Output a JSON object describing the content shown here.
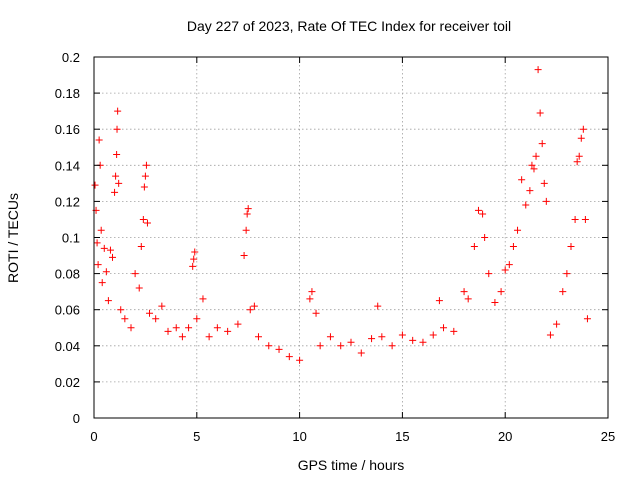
{
  "chart_data": {
    "type": "scatter",
    "title": "Day 227 of 2023, Rate Of TEC Index for receiver toil",
    "xlabel": "GPS time / hours",
    "ylabel": "ROTI / TECUs",
    "xlim": [
      0,
      25
    ],
    "ylim": [
      0,
      0.2
    ],
    "xticks": [
      "0",
      "5",
      "10",
      "15",
      "20",
      "25"
    ],
    "yticks": [
      "0",
      "0.02",
      "0.04",
      "0.06",
      "0.08",
      "0.1",
      "0.12",
      "0.14",
      "0.16",
      "0.18",
      "0.2"
    ],
    "grid": true,
    "marker": "+",
    "color": "#ff0000",
    "series": [
      {
        "points": [
          [
            0.05,
            0.129
          ],
          [
            0.1,
            0.115
          ],
          [
            0.15,
            0.097
          ],
          [
            0.2,
            0.085
          ],
          [
            0.25,
            0.154
          ],
          [
            0.3,
            0.14
          ],
          [
            0.35,
            0.104
          ],
          [
            0.4,
            0.075
          ],
          [
            0.5,
            0.094
          ],
          [
            0.6,
            0.081
          ],
          [
            0.7,
            0.065
          ],
          [
            0.8,
            0.093
          ],
          [
            0.9,
            0.089
          ],
          [
            1.0,
            0.125
          ],
          [
            1.05,
            0.134
          ],
          [
            1.1,
            0.146
          ],
          [
            1.12,
            0.16
          ],
          [
            1.15,
            0.17
          ],
          [
            1.2,
            0.13
          ],
          [
            1.3,
            0.06
          ],
          [
            1.5,
            0.055
          ],
          [
            1.8,
            0.05
          ],
          [
            2.0,
            0.08
          ],
          [
            2.2,
            0.072
          ],
          [
            2.3,
            0.095
          ],
          [
            2.4,
            0.11
          ],
          [
            2.45,
            0.128
          ],
          [
            2.5,
            0.134
          ],
          [
            2.55,
            0.14
          ],
          [
            2.6,
            0.108
          ],
          [
            2.7,
            0.058
          ],
          [
            3.0,
            0.055
          ],
          [
            3.3,
            0.062
          ],
          [
            3.6,
            0.048
          ],
          [
            4.0,
            0.05
          ],
          [
            4.3,
            0.045
          ],
          [
            4.6,
            0.05
          ],
          [
            4.8,
            0.084
          ],
          [
            4.85,
            0.088
          ],
          [
            4.9,
            0.092
          ],
          [
            5.0,
            0.055
          ],
          [
            5.3,
            0.066
          ],
          [
            5.6,
            0.045
          ],
          [
            6.0,
            0.05
          ],
          [
            6.5,
            0.048
          ],
          [
            7.0,
            0.052
          ],
          [
            7.3,
            0.09
          ],
          [
            7.4,
            0.104
          ],
          [
            7.45,
            0.113
          ],
          [
            7.5,
            0.116
          ],
          [
            7.6,
            0.06
          ],
          [
            7.8,
            0.062
          ],
          [
            8.0,
            0.045
          ],
          [
            8.5,
            0.04
          ],
          [
            9.0,
            0.038
          ],
          [
            9.5,
            0.034
          ],
          [
            10.0,
            0.032
          ],
          [
            10.5,
            0.066
          ],
          [
            10.6,
            0.07
          ],
          [
            10.8,
            0.058
          ],
          [
            11.0,
            0.04
          ],
          [
            11.5,
            0.045
          ],
          [
            12.0,
            0.04
          ],
          [
            12.5,
            0.042
          ],
          [
            13.0,
            0.036
          ],
          [
            13.5,
            0.044
          ],
          [
            13.8,
            0.062
          ],
          [
            14.0,
            0.045
          ],
          [
            14.5,
            0.04
          ],
          [
            15.0,
            0.046
          ],
          [
            15.5,
            0.043
          ],
          [
            16.0,
            0.042
          ],
          [
            16.5,
            0.046
          ],
          [
            16.8,
            0.065
          ],
          [
            17.0,
            0.05
          ],
          [
            17.5,
            0.048
          ],
          [
            18.0,
            0.07
          ],
          [
            18.2,
            0.066
          ],
          [
            18.5,
            0.095
          ],
          [
            18.7,
            0.115
          ],
          [
            18.9,
            0.113
          ],
          [
            19.0,
            0.1
          ],
          [
            19.2,
            0.08
          ],
          [
            19.5,
            0.064
          ],
          [
            19.8,
            0.07
          ],
          [
            20.0,
            0.082
          ],
          [
            20.2,
            0.085
          ],
          [
            20.4,
            0.095
          ],
          [
            20.6,
            0.104
          ],
          [
            20.8,
            0.132
          ],
          [
            21.0,
            0.118
          ],
          [
            21.2,
            0.126
          ],
          [
            21.3,
            0.14
          ],
          [
            21.4,
            0.138
          ],
          [
            21.5,
            0.145
          ],
          [
            21.6,
            0.193
          ],
          [
            21.7,
            0.169
          ],
          [
            21.8,
            0.152
          ],
          [
            21.9,
            0.13
          ],
          [
            22.0,
            0.12
          ],
          [
            22.2,
            0.046
          ],
          [
            22.5,
            0.052
          ],
          [
            22.8,
            0.07
          ],
          [
            23.0,
            0.08
          ],
          [
            23.2,
            0.095
          ],
          [
            23.4,
            0.11
          ],
          [
            23.5,
            0.142
          ],
          [
            23.6,
            0.145
          ],
          [
            23.7,
            0.155
          ],
          [
            23.8,
            0.16
          ],
          [
            23.9,
            0.11
          ],
          [
            24.0,
            0.055
          ]
        ]
      }
    ]
  }
}
